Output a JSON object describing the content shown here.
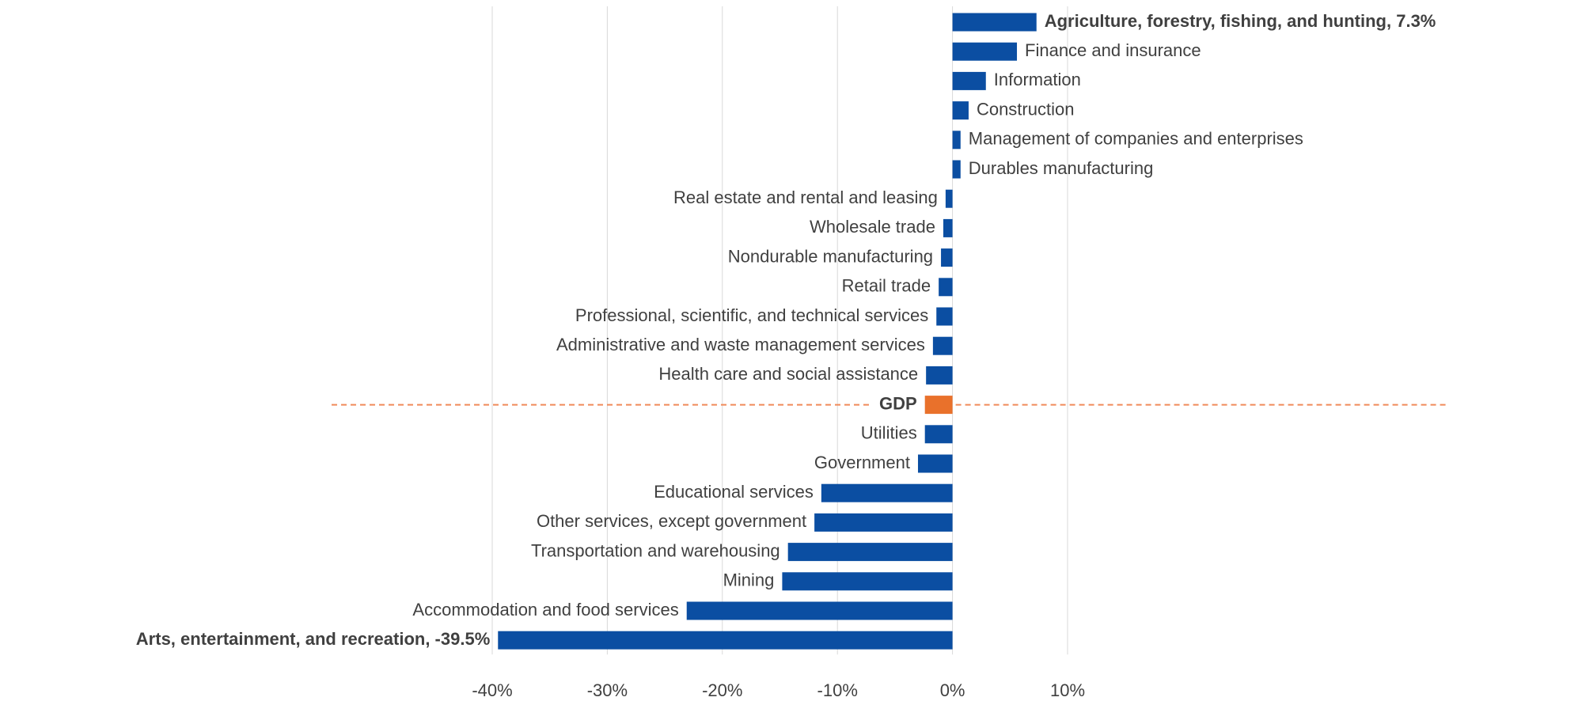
{
  "chart_data": {
    "type": "bar",
    "orientation": "horizontal",
    "categories": [
      "Agriculture, forestry, fishing, and hunting, 7.3%",
      "Finance and insurance",
      "Information",
      "Construction",
      "Management of companies and enterprises",
      "Durables manufacturing",
      "Real estate and rental and leasing",
      "Wholesale trade",
      "Nondurable manufacturing",
      "Retail trade",
      "Professional, scientific, and technical services",
      "Administrative and waste management services",
      "Health care and social assistance",
      "GDP",
      "Utilities",
      "Government",
      "Educational services",
      "Other services, except government",
      "Transportation and warehousing",
      "Mining",
      "Accommodation and food services",
      "Arts, entertainment, and recreation, -39.5%"
    ],
    "values": [
      7.3,
      5.6,
      2.9,
      1.4,
      0.7,
      0.7,
      -0.6,
      -0.8,
      -1.0,
      -1.2,
      -1.4,
      -1.7,
      -2.3,
      -2.4,
      -2.4,
      -3.0,
      -11.4,
      -12.0,
      -14.3,
      -14.8,
      -23.1,
      -39.5
    ],
    "colors": [
      "#0b4ea2",
      "#0b4ea2",
      "#0b4ea2",
      "#0b4ea2",
      "#0b4ea2",
      "#0b4ea2",
      "#0b4ea2",
      "#0b4ea2",
      "#0b4ea2",
      "#0b4ea2",
      "#0b4ea2",
      "#0b4ea2",
      "#0b4ea2",
      "#e9712b",
      "#0b4ea2",
      "#0b4ea2",
      "#0b4ea2",
      "#0b4ea2",
      "#0b4ea2",
      "#0b4ea2",
      "#0b4ea2",
      "#0b4ea2"
    ],
    "bold": [
      true,
      false,
      false,
      false,
      false,
      false,
      false,
      false,
      false,
      false,
      false,
      false,
      false,
      true,
      false,
      false,
      false,
      false,
      false,
      false,
      false,
      true
    ],
    "reference_line_index": 13,
    "reference_line_color": "#f08a5a",
    "xlim": [
      -40,
      10
    ],
    "xticks": [
      {
        "value": -40,
        "label": "-40%"
      },
      {
        "value": -30,
        "label": "-30%"
      },
      {
        "value": -20,
        "label": "-20%"
      },
      {
        "value": -10,
        "label": "-10%"
      },
      {
        "value": 0,
        "label": "0%"
      },
      {
        "value": 10,
        "label": "10%"
      }
    ],
    "grid": true
  }
}
